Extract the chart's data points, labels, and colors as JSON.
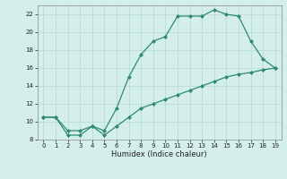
{
  "line1_x": [
    0,
    1,
    2,
    3,
    4,
    5,
    6,
    7,
    8,
    9,
    10,
    11,
    12,
    13,
    14,
    15,
    16,
    17,
    18,
    19
  ],
  "line1_y": [
    10.5,
    10.5,
    9.0,
    9.0,
    9.5,
    9.0,
    11.5,
    15.0,
    17.5,
    19.0,
    19.5,
    21.8,
    21.8,
    21.8,
    22.5,
    22.0,
    21.8,
    19.0,
    17.0,
    16.0
  ],
  "line2_x": [
    0,
    1,
    2,
    3,
    4,
    5,
    6,
    7,
    8,
    9,
    10,
    11,
    12,
    13,
    14,
    15,
    16,
    17,
    18,
    19
  ],
  "line2_y": [
    10.5,
    10.5,
    8.5,
    8.5,
    9.5,
    8.5,
    9.5,
    10.5,
    11.5,
    12.0,
    12.5,
    13.0,
    13.5,
    14.0,
    14.5,
    15.0,
    15.3,
    15.5,
    15.8,
    16.0
  ],
  "line_color": "#2e8b6e",
  "bg_color": "#d4eeea",
  "grid_color": "#bcddd8",
  "xlabel": "Humidex (Indice chaleur)",
  "xlim": [
    -0.5,
    19.5
  ],
  "ylim": [
    8,
    23
  ],
  "xticks": [
    0,
    1,
    2,
    3,
    4,
    5,
    6,
    7,
    8,
    9,
    10,
    11,
    12,
    13,
    14,
    15,
    16,
    17,
    18,
    19
  ],
  "yticks": [
    8,
    10,
    12,
    14,
    16,
    18,
    20,
    22
  ]
}
